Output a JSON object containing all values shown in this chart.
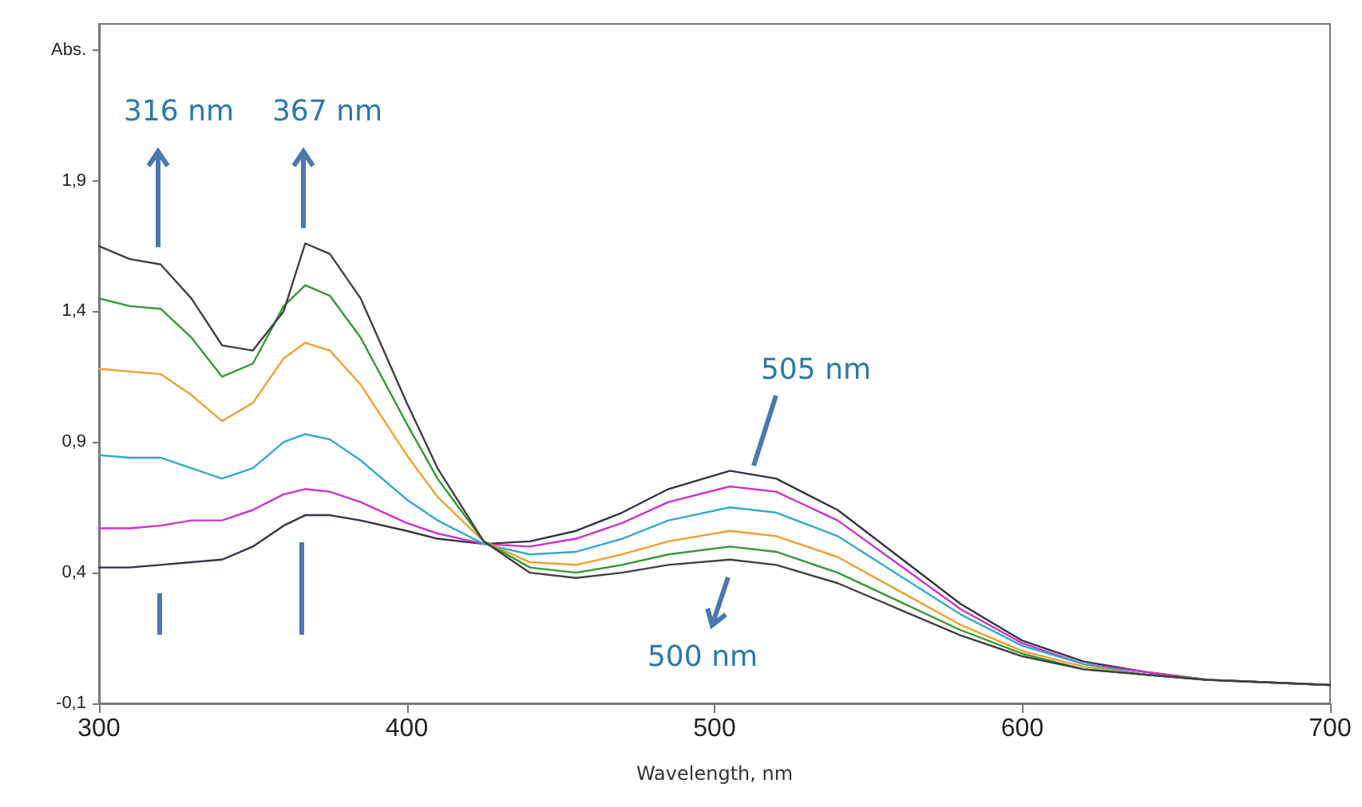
{
  "chart_data": {
    "type": "line",
    "xlabel": "Wavelength, nm",
    "x": [
      300,
      310,
      320,
      330,
      340,
      350,
      360,
      367,
      375,
      385,
      400,
      410,
      425,
      440,
      455,
      470,
      485,
      505,
      520,
      540,
      560,
      580,
      600,
      620,
      640,
      660,
      680,
      700
    ],
    "series": [
      {
        "color": "#333344",
        "values": [
          0.42,
          0.42,
          0.43,
          0.44,
          0.45,
          0.5,
          0.58,
          0.62,
          0.62,
          0.6,
          0.56,
          0.53,
          0.51,
          0.52,
          0.56,
          0.63,
          0.72,
          0.79,
          0.76,
          0.64,
          0.46,
          0.28,
          0.14,
          0.06,
          0.02,
          -0.01,
          -0.02,
          -0.03
        ]
      },
      {
        "color": "#cc33cc",
        "values": [
          0.57,
          0.57,
          0.58,
          0.6,
          0.6,
          0.64,
          0.7,
          0.72,
          0.71,
          0.67,
          0.59,
          0.55,
          0.51,
          0.5,
          0.53,
          0.59,
          0.67,
          0.73,
          0.71,
          0.6,
          0.43,
          0.26,
          0.13,
          0.05,
          0.02,
          -0.01,
          -0.02,
          -0.03
        ]
      },
      {
        "color": "#33aacc",
        "values": [
          0.85,
          0.84,
          0.84,
          0.8,
          0.76,
          0.8,
          0.9,
          0.93,
          0.91,
          0.83,
          0.68,
          0.6,
          0.51,
          0.47,
          0.48,
          0.53,
          0.6,
          0.65,
          0.63,
          0.54,
          0.39,
          0.24,
          0.12,
          0.05,
          0.01,
          -0.01,
          null,
          null
        ]
      },
      {
        "color": "#f0a030",
        "values": [
          1.18,
          1.17,
          1.16,
          1.08,
          0.98,
          1.05,
          1.22,
          1.28,
          1.25,
          1.12,
          0.85,
          0.69,
          0.52,
          0.44,
          0.43,
          0.47,
          0.52,
          0.56,
          0.54,
          0.46,
          0.33,
          0.2,
          0.1,
          0.04,
          0.01,
          -0.01,
          null,
          null
        ]
      },
      {
        "color": "#339933",
        "values": [
          1.45,
          1.42,
          1.41,
          1.3,
          1.15,
          1.2,
          1.42,
          1.5,
          1.46,
          1.3,
          0.97,
          0.76,
          0.52,
          0.42,
          0.4,
          0.43,
          0.47,
          0.5,
          0.48,
          0.4,
          0.29,
          0.18,
          0.09,
          0.03,
          0.01,
          -0.01,
          -0.02,
          -0.03
        ]
      },
      {
        "color": "#404040",
        "values": [
          1.65,
          1.6,
          1.58,
          1.45,
          1.27,
          1.25,
          1.4,
          1.66,
          1.62,
          1.45,
          1.05,
          0.8,
          0.52,
          0.4,
          0.38,
          0.4,
          0.43,
          0.45,
          0.43,
          0.36,
          0.26,
          0.16,
          0.08,
          0.03,
          0.01,
          -0.01,
          -0.02,
          -0.03
        ]
      }
    ],
    "xlim": [
      300,
      700
    ],
    "xticks": [
      300,
      400,
      500,
      600,
      700
    ],
    "ylim": [
      -0.1,
      2.5
    ],
    "yticks": [
      {
        "value": -0.1,
        "label": "-0,1"
      },
      {
        "value": 0.4,
        "label": "0,4"
      },
      {
        "value": 0.9,
        "label": "0,9"
      },
      {
        "value": 1.4,
        "label": "1,4"
      },
      {
        "value": 1.9,
        "label": "1,9"
      },
      {
        "value": 2.4,
        "label": "Abs."
      }
    ],
    "annotations": [
      "316 nm",
      "367 nm",
      "505 nm",
      "500 nm"
    ],
    "grid": false,
    "marker": "none",
    "line_style": "solid"
  }
}
